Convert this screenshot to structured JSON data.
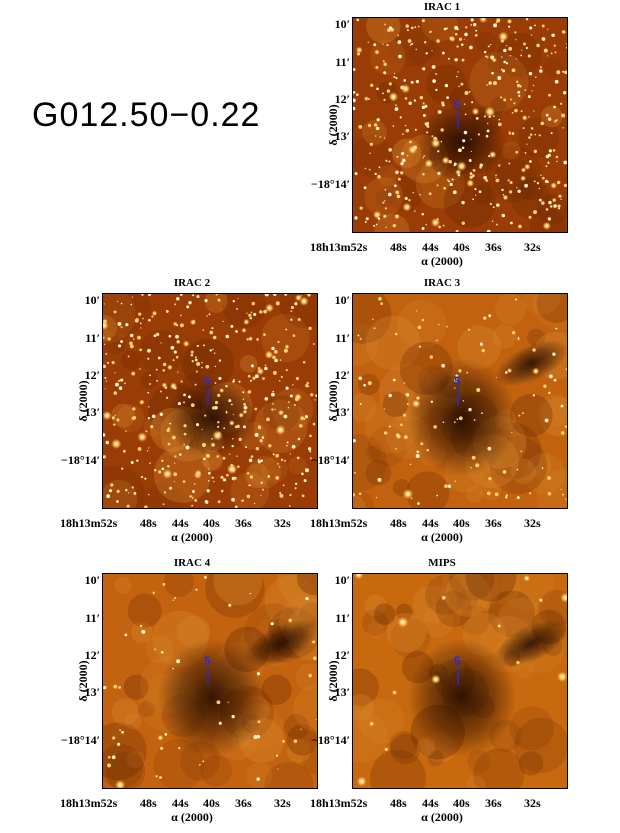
{
  "figure": {
    "source_name": "G012.50−0.22",
    "marker_label": "5",
    "colors": {
      "marker": "#2b2bd6"
    },
    "y_axis": {
      "label": "δ (2000)",
      "ticks": [
        "10′",
        "11′",
        "12′",
        "13′",
        "−18°14′"
      ]
    },
    "x_axis": {
      "label": "α (2000)",
      "ticks": [
        "18h13m52s",
        "48s",
        "44s",
        "40s",
        "36s",
        "32s"
      ]
    },
    "panels": [
      {
        "title": "IRAC 1",
        "style": "stars"
      },
      {
        "title": "IRAC 2",
        "style": "stars"
      },
      {
        "title": "IRAC 3",
        "style": "mid"
      },
      {
        "title": "IRAC 4",
        "style": "diffuse"
      },
      {
        "title": "MIPS",
        "style": "mips"
      }
    ]
  }
}
